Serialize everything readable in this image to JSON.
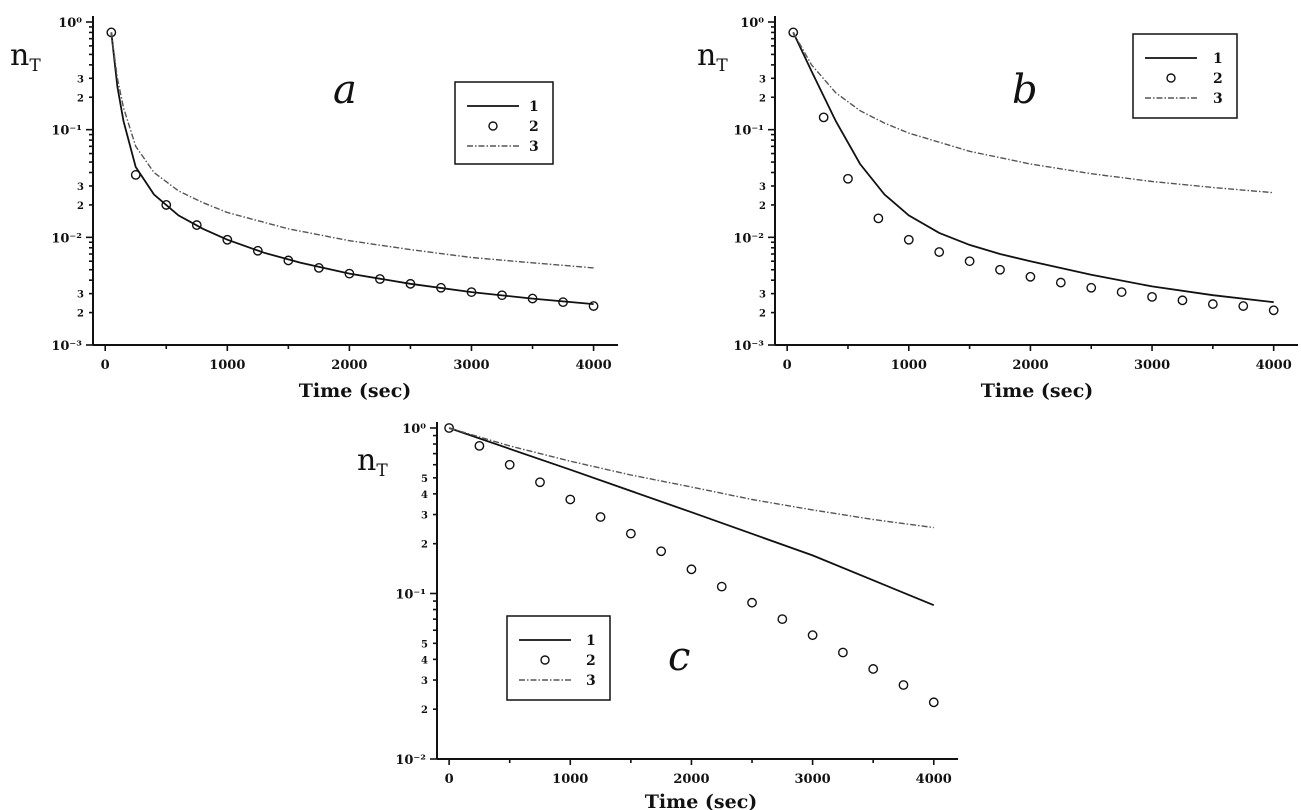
{
  "chart_data": [
    {
      "type": "line",
      "panel_label": "a",
      "xlabel": "Time (sec)",
      "ylabel": "n",
      "ylabel_sub": "T",
      "xlim": [
        -100,
        4200
      ],
      "ylim": [
        0.001,
        1
      ],
      "yscale": "log",
      "x_ticks": [
        0,
        1000,
        2000,
        3000,
        4000
      ],
      "y_major_ticks": [
        1,
        0.1,
        0.01,
        0.001
      ],
      "y_major_labels": [
        "10⁰",
        "10⁻¹",
        "10⁻²",
        "10⁻³"
      ],
      "y_minor_ticks": [
        0.3,
        0.2,
        0.03,
        0.02,
        0.003,
        0.002
      ],
      "y_minor_labels": [
        "3",
        "2",
        "3",
        "2",
        "3",
        "2"
      ],
      "legend": {
        "position": "upper-right",
        "entries": [
          "1",
          "2",
          "3"
        ]
      },
      "series": [
        {
          "style": "solid",
          "x": [
            50,
            100,
            150,
            250,
            400,
            600,
            800,
            1000,
            1300,
            1600,
            2000,
            2500,
            3000,
            3500,
            4000
          ],
          "y": [
            0.8,
            0.25,
            0.12,
            0.045,
            0.025,
            0.016,
            0.012,
            0.0095,
            0.0072,
            0.0058,
            0.0046,
            0.0037,
            0.0031,
            0.0027,
            0.0024
          ]
        },
        {
          "style": "circles",
          "x": [
            50,
            250,
            500,
            750,
            1000,
            1250,
            1500,
            1750,
            2000,
            2250,
            2500,
            2750,
            3000,
            3250,
            3500,
            3750,
            4000
          ],
          "y": [
            0.8,
            0.038,
            0.02,
            0.013,
            0.0095,
            0.0075,
            0.0061,
            0.0052,
            0.0046,
            0.0041,
            0.0037,
            0.0034,
            0.0031,
            0.0029,
            0.0027,
            0.0025,
            0.0023
          ]
        },
        {
          "style": "dash-dot",
          "x": [
            50,
            100,
            150,
            250,
            400,
            600,
            800,
            1000,
            1500,
            2000,
            2500,
            3000,
            3500,
            4000
          ],
          "y": [
            0.8,
            0.3,
            0.16,
            0.07,
            0.04,
            0.027,
            0.021,
            0.017,
            0.012,
            0.0093,
            0.0077,
            0.0065,
            0.0058,
            0.0052
          ]
        }
      ]
    },
    {
      "type": "line",
      "panel_label": "b",
      "xlabel": "Time (sec)",
      "ylabel": "n",
      "ylabel_sub": "T",
      "xlim": [
        -100,
        4200
      ],
      "ylim": [
        0.001,
        1
      ],
      "yscale": "log",
      "x_ticks": [
        0,
        1000,
        2000,
        3000,
        4000
      ],
      "y_major_ticks": [
        1,
        0.1,
        0.01,
        0.001
      ],
      "y_major_labels": [
        "10⁰",
        "10⁻¹",
        "10⁻²",
        "10⁻³"
      ],
      "y_minor_ticks": [
        0.3,
        0.2,
        0.03,
        0.02,
        0.003,
        0.002
      ],
      "y_minor_labels": [
        "3",
        "2",
        "3",
        "2",
        "3",
        "2"
      ],
      "legend": {
        "position": "upper-right",
        "entries": [
          "1",
          "2",
          "3"
        ]
      },
      "series": [
        {
          "style": "solid",
          "x": [
            50,
            200,
            400,
            600,
            800,
            1000,
            1250,
            1500,
            1750,
            2000,
            2500,
            3000,
            3500,
            4000
          ],
          "y": [
            0.8,
            0.35,
            0.12,
            0.048,
            0.025,
            0.016,
            0.011,
            0.0085,
            0.007,
            0.006,
            0.0045,
            0.0035,
            0.0029,
            0.0025
          ]
        },
        {
          "style": "circles",
          "x": [
            50,
            300,
            500,
            750,
            1000,
            1250,
            1500,
            1750,
            2000,
            2250,
            2500,
            2750,
            3000,
            3250,
            3500,
            3750,
            4000
          ],
          "y": [
            0.8,
            0.13,
            0.035,
            0.015,
            0.0095,
            0.0073,
            0.006,
            0.005,
            0.0043,
            0.0038,
            0.0034,
            0.0031,
            0.0028,
            0.0026,
            0.0024,
            0.0023,
            0.0021
          ]
        },
        {
          "style": "dash-dot",
          "x": [
            50,
            200,
            400,
            600,
            800,
            1000,
            1500,
            2000,
            2500,
            3000,
            3500,
            4000
          ],
          "y": [
            0.8,
            0.4,
            0.22,
            0.15,
            0.115,
            0.093,
            0.063,
            0.048,
            0.039,
            0.033,
            0.029,
            0.026
          ]
        }
      ]
    },
    {
      "type": "line",
      "panel_label": "c",
      "xlabel": "Time (sec)",
      "ylabel": "n",
      "ylabel_sub": "T",
      "xlim": [
        -100,
        4200
      ],
      "ylim": [
        0.01,
        1
      ],
      "yscale": "log",
      "x_ticks": [
        0,
        1000,
        2000,
        3000,
        4000
      ],
      "y_major_ticks": [
        1,
        0.1,
        0.01
      ],
      "y_major_labels": [
        "10⁰",
        "10⁻¹",
        "10⁻²"
      ],
      "y_minor_ticks": [
        0.5,
        0.4,
        0.3,
        0.2,
        0.05,
        0.04,
        0.03,
        0.02
      ],
      "y_minor_labels": [
        "5",
        "4",
        "3",
        "2",
        "5",
        "4",
        "3",
        "2"
      ],
      "legend": {
        "position": "lower-left",
        "entries": [
          "1",
          "2",
          "3"
        ]
      },
      "series": [
        {
          "style": "solid",
          "x": [
            0,
            1000,
            2000,
            3000,
            4000
          ],
          "y": [
            1.0,
            0.56,
            0.31,
            0.17,
            0.085
          ]
        },
        {
          "style": "circles",
          "x": [
            0,
            250,
            500,
            750,
            1000,
            1250,
            1500,
            1750,
            2000,
            2250,
            2500,
            2750,
            3000,
            3250,
            3500,
            3750,
            4000
          ],
          "y": [
            1.0,
            0.78,
            0.6,
            0.47,
            0.37,
            0.29,
            0.23,
            0.18,
            0.14,
            0.11,
            0.088,
            0.07,
            0.056,
            0.044,
            0.035,
            0.028,
            0.022
          ]
        },
        {
          "style": "dash-dot",
          "x": [
            0,
            500,
            1000,
            1500,
            2000,
            2500,
            3000,
            3500,
            4000
          ],
          "y": [
            1.0,
            0.78,
            0.63,
            0.52,
            0.44,
            0.37,
            0.32,
            0.28,
            0.25
          ]
        }
      ]
    }
  ]
}
